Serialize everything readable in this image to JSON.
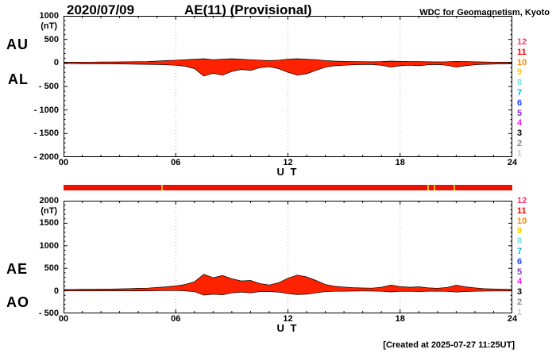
{
  "header": {
    "date": "2020/07/09",
    "title": "AE(11) (Provisional)",
    "source": "WDC for Geomagnetism, Kyoto"
  },
  "footer": {
    "created_at": "[Created at 2025-07-27 11:25UT]"
  },
  "station_scale": {
    "numbers": [
      "12",
      "11",
      "10",
      "9",
      "8",
      "7",
      "6",
      "5",
      "4",
      "3",
      "2",
      "1"
    ],
    "colors": [
      "#ff3366",
      "#ff0000",
      "#ff8800",
      "#ffcc00",
      "#7fdddd",
      "#00bbdd",
      "#2244ff",
      "#8833cc",
      "#ee22ee",
      "#000000",
      "#888888",
      "#cccccc"
    ]
  },
  "quality_bar": {
    "bar_color": "#ee1100",
    "mark_color": "#ffbb00",
    "marks": [
      0.218,
      0.81,
      0.824,
      0.869
    ]
  },
  "chart_data": [
    {
      "type": "area",
      "name": "AU-AL band",
      "left_labels": [
        "AU",
        "AL"
      ],
      "unit": "(nT)",
      "ylim": [
        -2000,
        1000
      ],
      "yticks": [
        1000,
        500,
        0,
        -500,
        -1000,
        -1500,
        -2000
      ],
      "ytick_labels": [
        "1000",
        "500",
        "0",
        "- 500",
        "- 1000",
        "- 1500",
        "- 2000"
      ],
      "y_minor_step": 100,
      "y_major_step": 500,
      "xlim": [
        0,
        24
      ],
      "xticks": [
        0,
        6,
        12,
        18,
        24
      ],
      "xtick_labels": [
        "00",
        "06",
        "12",
        "18",
        "24"
      ],
      "xlabel": "U T",
      "x_step_hours": 0.5,
      "fill_color": "#ff2200",
      "line_color": "#000000",
      "series": [
        {
          "name": "AU",
          "values": [
            15,
            15,
            18,
            18,
            20,
            20,
            22,
            25,
            28,
            30,
            40,
            50,
            60,
            70,
            80,
            90,
            70,
            80,
            90,
            80,
            70,
            60,
            50,
            60,
            80,
            90,
            80,
            70,
            50,
            40,
            35,
            30,
            28,
            25,
            30,
            40,
            35,
            30,
            30,
            25,
            22,
            25,
            35,
            30,
            25,
            20,
            18,
            15,
            15
          ]
        },
        {
          "name": "AL",
          "values": [
            -15,
            -15,
            -18,
            -18,
            -20,
            -20,
            -22,
            -25,
            -28,
            -30,
            -35,
            -40,
            -50,
            -70,
            -120,
            -280,
            -220,
            -260,
            -180,
            -140,
            -160,
            -100,
            -80,
            -120,
            -200,
            -260,
            -230,
            -160,
            -90,
            -60,
            -50,
            -40,
            -35,
            -35,
            -50,
            -90,
            -60,
            -50,
            -60,
            -40,
            -35,
            -50,
            -90,
            -60,
            -40,
            -30,
            -25,
            -20,
            -18
          ]
        }
      ]
    },
    {
      "type": "area",
      "name": "AE-AO band",
      "left_labels": [
        "AE",
        "AO"
      ],
      "unit": "(nT)",
      "ylim": [
        -500,
        2000
      ],
      "yticks": [
        2000,
        1500,
        1000,
        500,
        0,
        -500
      ],
      "ytick_labels": [
        "2000",
        "1500",
        "1000",
        "500",
        "0",
        "- 500"
      ],
      "y_minor_step": 100,
      "y_major_step": 500,
      "xlim": [
        0,
        24
      ],
      "xticks": [
        0,
        6,
        12,
        18,
        24
      ],
      "xtick_labels": [
        "00",
        "06",
        "12",
        "18",
        "24"
      ],
      "xlabel": "U T",
      "x_step_hours": 0.5,
      "fill_color": "#ff2200",
      "line_color": "#000000",
      "series": [
        {
          "name": "AE",
          "values": [
            30,
            30,
            36,
            36,
            40,
            40,
            44,
            50,
            56,
            60,
            75,
            90,
            110,
            140,
            200,
            370,
            290,
            340,
            270,
            220,
            230,
            160,
            130,
            180,
            280,
            350,
            310,
            230,
            140,
            100,
            85,
            70,
            63,
            60,
            80,
            130,
            95,
            80,
            90,
            65,
            57,
            75,
            125,
            90,
            65,
            50,
            43,
            35,
            33
          ]
        },
        {
          "name": "AO",
          "values": [
            0,
            0,
            0,
            0,
            0,
            0,
            0,
            0,
            0,
            0,
            3,
            5,
            5,
            0,
            -20,
            -95,
            -75,
            -90,
            -45,
            -30,
            -45,
            -20,
            -15,
            -30,
            -60,
            -85,
            -75,
            -45,
            -20,
            -10,
            -8,
            -5,
            -4,
            -5,
            -10,
            -25,
            -13,
            -10,
            -15,
            -8,
            -7,
            -13,
            -28,
            -15,
            -8,
            -5,
            -4,
            -3,
            -2
          ]
        }
      ]
    }
  ]
}
